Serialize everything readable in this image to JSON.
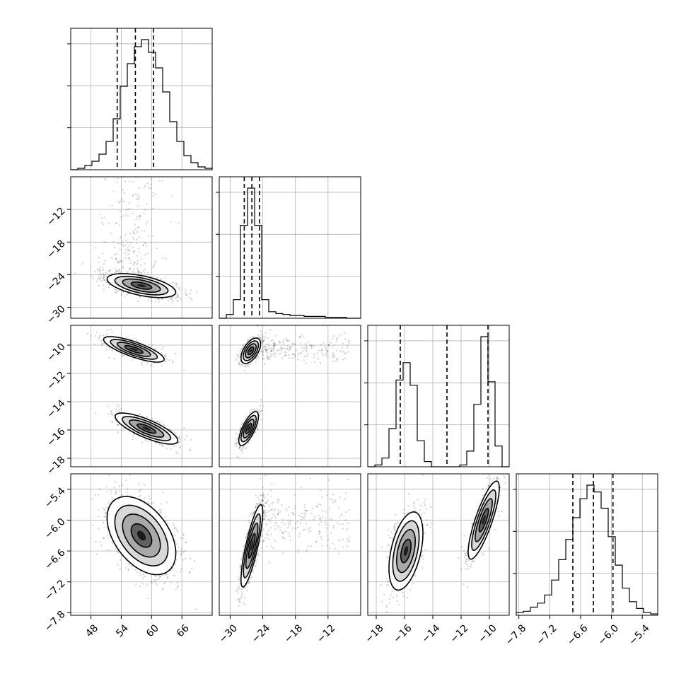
{
  "chart_data": {
    "type": "corner",
    "parameters": [
      {
        "range": [
          44,
          72
        ],
        "ticks": [
          48,
          54,
          60,
          66
        ],
        "tick_labels": [
          "48",
          "54",
          "60",
          "66"
        ],
        "quantiles": [
          53.2,
          56.8,
          60.4
        ],
        "hist": {
          "edges": [
            44,
            45.4,
            46.8,
            48.2,
            49.6,
            51,
            52.4,
            53.8,
            55.2,
            56.6,
            58,
            59.4,
            60.8,
            62.2,
            63.6,
            65,
            66.4,
            67.8,
            69.2,
            70.6,
            72
          ],
          "counts": [
            0,
            1,
            3,
            6,
            11,
            20,
            36,
            59,
            75,
            87,
            92,
            83,
            72,
            55,
            34,
            20,
            10,
            5,
            2,
            1
          ]
        },
        "samples": {
          "type": "normal",
          "mean": 58,
          "sd": 3.4
        }
      },
      {
        "range": [
          -32,
          -6
        ],
        "ticks": [
          -30,
          -24,
          -18,
          -12
        ],
        "tick_labels": [
          "−30",
          "−24",
          "−18",
          "−12"
        ],
        "quantiles": [
          -27.4,
          -26.0,
          -24.6
        ],
        "hist": {
          "edges": [
            -32,
            -30.7,
            -29.4,
            -28.1,
            -26.8,
            -25.5,
            -24.2,
            -22.9,
            -21.6,
            -20.3,
            -19,
            -17.7,
            -16.4,
            -15.1,
            -13.8,
            -12.5,
            -11.2,
            -9.9,
            -8.6,
            -7.3,
            -6
          ],
          "counts": [
            0,
            4,
            20,
            100,
            140,
            100,
            20,
            7,
            5,
            4,
            3,
            3,
            2,
            2,
            2,
            1,
            1,
            1,
            0,
            0
          ]
        },
        "samples": {
          "type": "mixture",
          "components": [
            {
              "weight": 0.85,
              "mean": -26.0,
              "sd": 1.0
            },
            {
              "weight": 0.15,
              "low": -24,
              "high": -7
            }
          ]
        }
      },
      {
        "range": [
          -18.6,
          -8.6
        ],
        "ticks": [
          -18,
          -16,
          -14,
          -12,
          -10
        ],
        "tick_labels": [
          "−18",
          "−16",
          "−14",
          "−12",
          "−10"
        ],
        "quantiles": [
          -16.3,
          -13.0,
          -10.1
        ],
        "hist": {
          "edges": [
            -18.6,
            -18.1,
            -17.6,
            -17.1,
            -16.6,
            -16.1,
            -15.6,
            -15.1,
            -14.6,
            -14.1,
            -13.6,
            -13.1,
            -12.6,
            -12.1,
            -11.6,
            -11.1,
            -10.6,
            -10.1,
            -9.6,
            -9.1,
            -8.6
          ],
          "counts": [
            0,
            1,
            5,
            22,
            50,
            60,
            47,
            15,
            3,
            0,
            0,
            0,
            0,
            1,
            9,
            36,
            75,
            49,
            12,
            0
          ]
        },
        "samples": {
          "type": "mixture",
          "components": [
            {
              "weight": 0.5,
              "mean": -15.9,
              "sd": 0.6
            },
            {
              "weight": 0.5,
              "mean": -10.4,
              "sd": 0.55
            }
          ]
        }
      },
      {
        "range": [
          -7.85,
          -5.1
        ],
        "ticks": [
          -7.8,
          -7.2,
          -6.6,
          -6.0,
          -5.4
        ],
        "tick_labels": [
          "−7.8",
          "−7.2",
          "−6.6",
          "−6.0",
          "−5.4"
        ],
        "quantiles": [
          -6.75,
          -6.35,
          -5.97
        ],
        "hist": {
          "edges": [
            -7.85,
            -7.7125,
            -7.575,
            -7.4375,
            -7.3,
            -7.1625,
            -7.025,
            -6.8875,
            -6.75,
            -6.6125,
            -6.475,
            -6.3375,
            -6.2,
            -6.0625,
            -5.925,
            -5.7875,
            -5.65,
            -5.5125,
            -5.375,
            -5.2375,
            -5.1
          ],
          "counts": [
            2,
            3,
            6,
            9,
            15,
            26,
            41,
            56,
            72,
            86,
            96,
            91,
            79,
            58,
            37,
            20,
            10,
            5,
            2,
            1
          ]
        },
        "samples": {
          "type": "normal",
          "mean": -6.35,
          "sd": 0.38
        }
      }
    ],
    "pairs": [
      {
        "row": 1,
        "col": 0,
        "clusters": [
          {
            "mean": [
              58.0,
              -26.0
            ],
            "sd": [
              3.4,
              1.1
            ],
            "rho": -0.55,
            "weight": 0.85
          }
        ],
        "tail": {
          "x_mean": 56,
          "x_sd": 3.2,
          "y_range": [
            -24,
            -6
          ],
          "weight": 0.15
        }
      },
      {
        "row": 2,
        "col": 0,
        "clusters": [
          {
            "mean": [
              56.5,
              -10.3
            ],
            "sd": [
              3.0,
              0.45
            ],
            "rho": -0.78,
            "weight": 0.5
          },
          {
            "mean": [
              59.0,
              -15.9
            ],
            "sd": [
              3.1,
              0.55
            ],
            "rho": -0.78,
            "weight": 0.5
          }
        ]
      },
      {
        "row": 2,
        "col": 1,
        "clusters": [
          {
            "mean": [
              -26.2,
              -10.4
            ],
            "sd": [
              0.9,
              0.45
            ],
            "rho": 0.55,
            "weight": 0.42
          },
          {
            "mean": [
              -26.6,
              -15.9
            ],
            "sd": [
              0.9,
              0.6
            ],
            "rho": 0.72,
            "weight": 0.43
          }
        ],
        "tail": {
          "x_range": [
            -24,
            -8
          ],
          "y_mean": -10.3,
          "y_sd": 0.5,
          "weight": 0.15
        }
      },
      {
        "row": 3,
        "col": 0,
        "clusters": [
          {
            "mean": [
              58.0,
              -6.3
            ],
            "sd": [
              3.4,
              0.38
            ],
            "rho": -0.45,
            "weight": 1.0
          }
        ]
      },
      {
        "row": 3,
        "col": 1,
        "clusters": [
          {
            "mean": [
              -26.0,
              -6.5
            ],
            "sd": [
              1.0,
              0.4
            ],
            "rho": 0.82,
            "weight": 0.85
          }
        ],
        "tail": {
          "x_range": [
            -24,
            -8
          ],
          "y_mean": -6.0,
          "y_sd": 0.3,
          "weight": 0.15
        }
      },
      {
        "row": 3,
        "col": 2,
        "clusters": [
          {
            "mean": [
              -15.9,
              -6.6
            ],
            "sd": [
              0.6,
              0.38
            ],
            "rho": 0.45,
            "weight": 0.5
          },
          {
            "mean": [
              -10.4,
              -6.0
            ],
            "sd": [
              0.55,
              0.38
            ],
            "rho": 0.82,
            "weight": 0.5
          }
        ]
      }
    ]
  }
}
